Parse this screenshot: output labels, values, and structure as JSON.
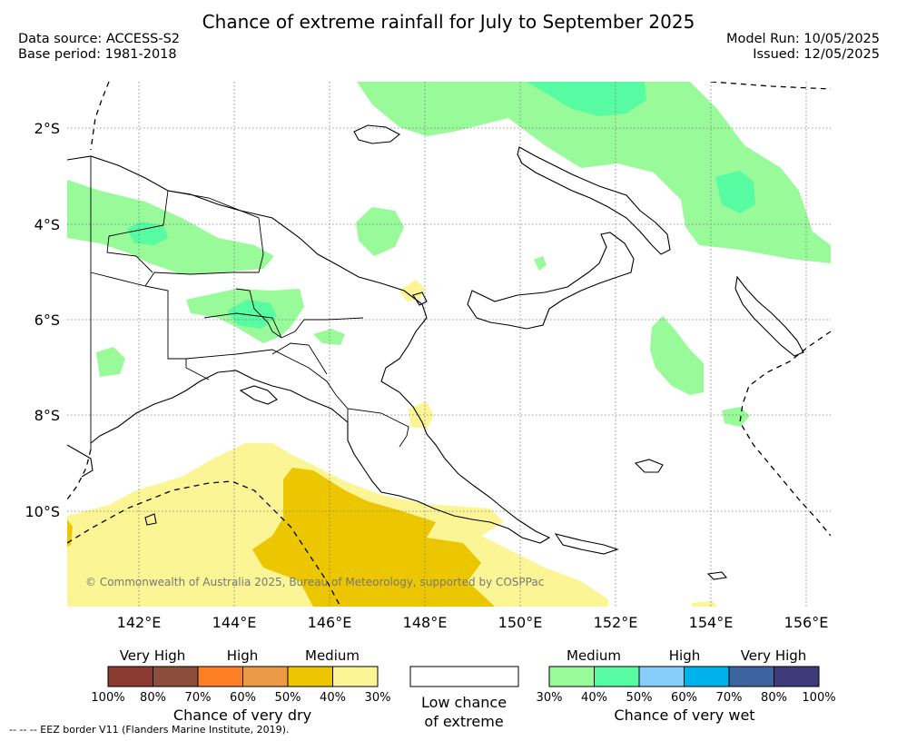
{
  "title": "Chance of extreme rainfall for July to September 2025",
  "meta": {
    "data_source": "Data source: ACCESS-S2",
    "base_period": "Base period: 1981-2018",
    "model_run": "Model Run: 10/05/2025",
    "issued": "Issued: 12/05/2025"
  },
  "map": {
    "lat_labels": [
      "2°S",
      "4°S",
      "6°S",
      "8°S",
      "10°S"
    ],
    "lon_labels": [
      "142°E",
      "144°E",
      "146°E",
      "148°E",
      "150°E",
      "152°E",
      "154°E",
      "156°E"
    ],
    "copyright": "© Commonwealth of Australia 2025, Bureau of Meteorology, supported by COSPPac",
    "colors": {
      "wet_medium": "#99fa99",
      "wet_medium_high": "#57fba2",
      "dry_medium_low": "#fbf595",
      "dry_medium": "#ecc600",
      "coast": "#000000"
    }
  },
  "legend": {
    "dry": {
      "levels": [
        "Very High",
        "High",
        "Medium"
      ],
      "colors": [
        "#8c3b32",
        "#8b4e3a",
        "#ff7f27",
        "#ed9a47",
        "#ecc600",
        "#fbf595"
      ],
      "ticks": [
        "100%",
        "80%",
        "70%",
        "60%",
        "50%",
        "40%",
        "30%"
      ],
      "caption": "Chance of very dry"
    },
    "low": {
      "caption_line1": "Low chance",
      "caption_line2": "of extreme"
    },
    "wet": {
      "levels": [
        "Medium",
        "High",
        "Very High"
      ],
      "colors": [
        "#99fa99",
        "#57fba2",
        "#87cdfa",
        "#00b1ea",
        "#3c64a0",
        "#3e3b7b"
      ],
      "ticks": [
        "30%",
        "40%",
        "50%",
        "60%",
        "70%",
        "80%",
        "100%"
      ],
      "caption": "Chance of very wet"
    }
  },
  "footnote": "-- -- -- EEZ border V11 (Flanders Marine Institute, 2019)."
}
